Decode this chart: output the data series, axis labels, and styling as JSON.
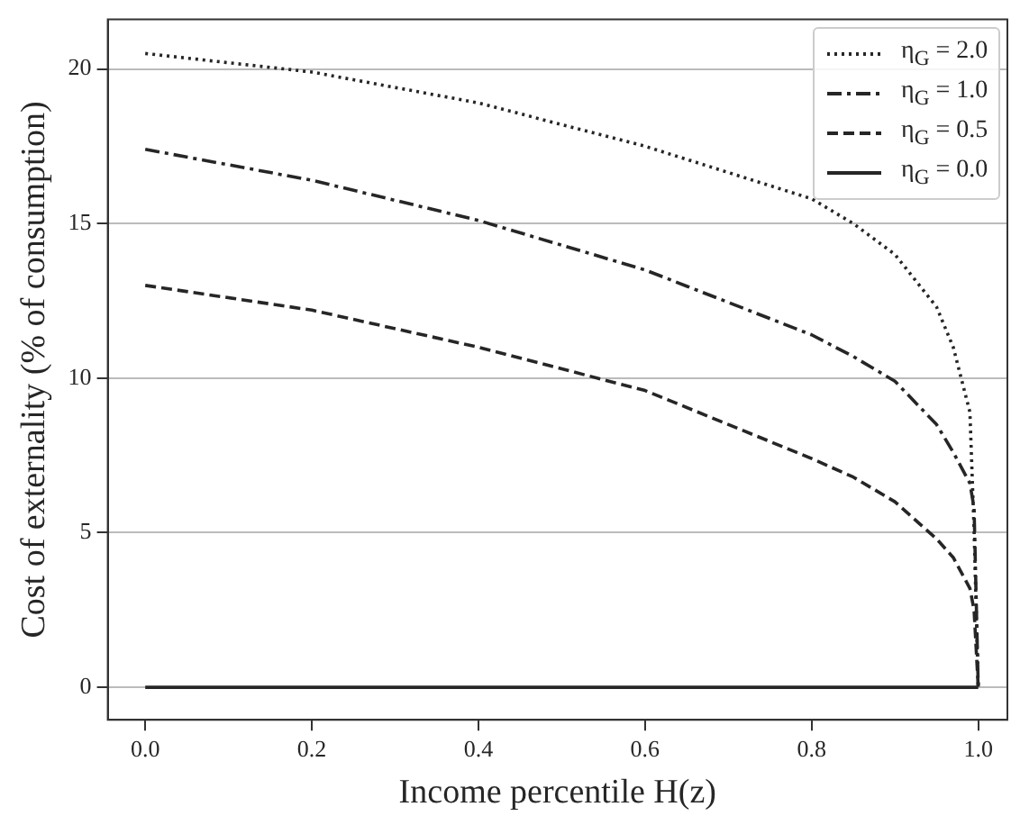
{
  "chart_data": {
    "type": "line",
    "xlabel": "Income percentile H(z)",
    "ylabel": "Cost of externality (% of consumption)",
    "x": [
      0,
      0.2,
      0.4,
      0.6,
      0.8,
      0.85,
      0.9,
      0.95,
      0.97,
      0.99,
      0.995,
      1.0
    ],
    "xlim": [
      -0.045,
      1.035
    ],
    "xticks": [
      {
        "value": 0,
        "label": "0.0"
      },
      0.2,
      0.4,
      0.6,
      0.8,
      {
        "value": 1,
        "label": "1.0"
      }
    ],
    "ylim": [
      -1.05,
      21.6
    ],
    "yticks": [
      0,
      5,
      10,
      15,
      20
    ],
    "grid": "y",
    "legend": "top right",
    "marker": "none",
    "series": [
      {
        "name": "η$_{G}$ = 2.0",
        "color": "#262626",
        "line_style": "dotted",
        "values": [
          20.5,
          19.9,
          18.9,
          17.5,
          15.8,
          15.0,
          14.0,
          12.3,
          11.0,
          8.9,
          5.1,
          0
        ]
      },
      {
        "name": "η$_{G}$ = 1.0",
        "color": "#262626",
        "line_style": "dashdot",
        "values": [
          17.4,
          16.4,
          15.1,
          13.5,
          11.4,
          10.7,
          9.9,
          8.5,
          7.6,
          6.6,
          5.8,
          0
        ]
      },
      {
        "name": "η$_{G}$ = 0.5",
        "color": "#262626",
        "line_style": "dashed",
        "values": [
          13.0,
          12.2,
          11.0,
          9.6,
          7.4,
          6.8,
          6.0,
          4.8,
          4.2,
          3.2,
          2.5,
          0
        ]
      },
      {
        "name": "η$_{G}$ = 0.0",
        "color": "#262626",
        "line_style": "solid",
        "values": [
          0,
          0,
          0,
          0,
          0,
          0,
          0,
          0,
          0,
          0,
          0,
          0
        ]
      }
    ]
  }
}
